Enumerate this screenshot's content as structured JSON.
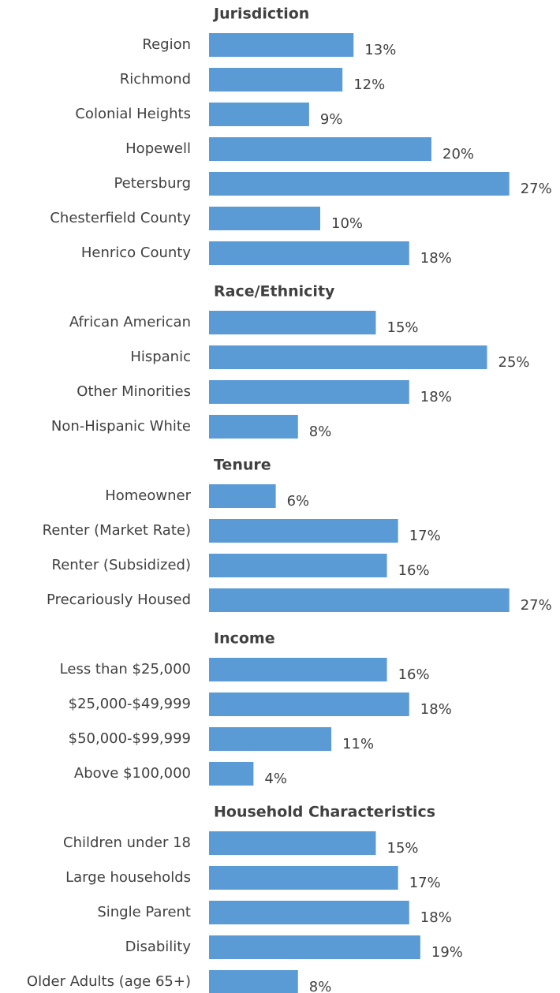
{
  "chart_data": [
    {
      "type": "bar",
      "title": "Jurisdiction",
      "color": "#5b9bd5",
      "categories": [
        "Region",
        "Richmond",
        "Colonial Heights",
        "Hopewell",
        "Petersburg",
        "Chesterfield County",
        "Henrico County"
      ],
      "values": [
        13,
        12,
        9,
        20,
        27,
        10,
        18
      ],
      "value_labels": [
        "13%",
        "12%",
        "9%",
        "20%",
        "27%",
        "10%",
        "18%"
      ]
    },
    {
      "type": "bar",
      "title": "Race/Ethnicity",
      "color": "#5b9bd5",
      "categories": [
        "African American",
        "Hispanic",
        "Other Minorities",
        "Non-Hispanic White"
      ],
      "values": [
        15,
        25,
        18,
        8
      ],
      "value_labels": [
        "15%",
        "25%",
        "18%",
        "8%"
      ]
    },
    {
      "type": "bar",
      "title": "Tenure",
      "color": "#5b9bd5",
      "categories": [
        "Homeowner",
        "Renter (Market Rate)",
        "Renter (Subsidized)",
        "Precariously Housed"
      ],
      "values": [
        6,
        17,
        16,
        27
      ],
      "value_labels": [
        "6%",
        "17%",
        "16%",
        "27%"
      ]
    },
    {
      "type": "bar",
      "title": "Income",
      "color": "#5b9bd5",
      "categories": [
        "Less than $25,000",
        "$25,000-$49,999",
        "$50,000-$99,999",
        "Above $100,000"
      ],
      "values": [
        16,
        18,
        11,
        4
      ],
      "value_labels": [
        "16%",
        "18%",
        "11%",
        "4%"
      ]
    },
    {
      "type": "bar",
      "title": "Household Characteristics",
      "color": "#5b9bd5",
      "categories": [
        "Children under 18",
        "Large households",
        "Single Parent",
        "Disability",
        "Older Adults (age 65+)"
      ],
      "values": [
        15,
        17,
        18,
        19,
        8
      ],
      "value_labels": [
        "15%",
        "17%",
        "18%",
        "19%",
        "8%"
      ]
    }
  ]
}
